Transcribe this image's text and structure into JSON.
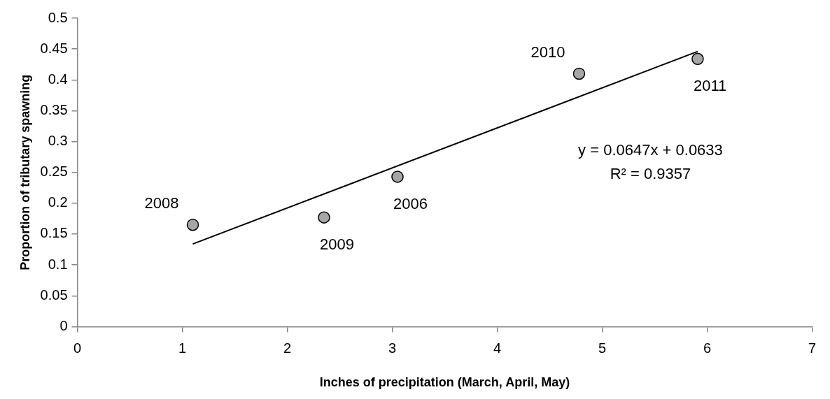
{
  "chart_data": {
    "type": "scatter",
    "xlabel": "Inches of precipitation (March, April, May)",
    "ylabel": "Proportion of tributary spawning",
    "xlim": [
      0,
      7
    ],
    "xticks": [
      0,
      1,
      2,
      3,
      4,
      5,
      6,
      7
    ],
    "ylim": [
      0,
      0.5
    ],
    "yticks": [
      0,
      0.05,
      0.1,
      0.15,
      0.2,
      0.25,
      0.3,
      0.35,
      0.4,
      0.45,
      0.5
    ],
    "grid": false,
    "legend": false,
    "series": [
      {
        "color": "#a6a6a6",
        "marker": "circle",
        "x": [
          1.1,
          2.35,
          3.05,
          4.78,
          5.91
        ],
        "values": [
          0.165,
          0.177,
          0.243,
          0.41,
          0.434
        ]
      },
      {
        "type": "line",
        "color": "#000000",
        "marker": "none",
        "x": [
          1.1,
          5.91
        ],
        "values": [
          0.134,
          0.446
        ]
      }
    ],
    "annotations": [
      {
        "text": "2008",
        "x": 1.1,
        "y": 0.165
      },
      {
        "text": "2009",
        "x": 2.35,
        "y": 0.177
      },
      {
        "text": "2006",
        "x": 3.05,
        "y": 0.243
      },
      {
        "text": "2010",
        "x": 4.78,
        "y": 0.41
      },
      {
        "text": "2011",
        "x": 5.91,
        "y": 0.434
      },
      "y = 0.0647x + 0.0633",
      "R² = 0.9357"
    ]
  }
}
